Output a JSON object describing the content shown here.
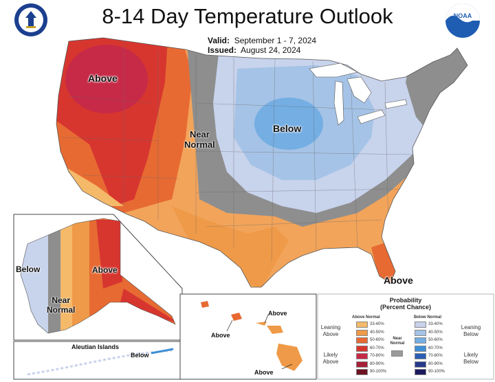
{
  "header": {
    "title": "8-14 Day Temperature Outlook",
    "valid_label": "Valid:",
    "valid_value": "September 1 - 7, 2024",
    "issued_label": "Issued:",
    "issued_value": "August 24, 2024"
  },
  "logos": {
    "left": "department-of-commerce-seal",
    "right": "noaa-logo"
  },
  "map_labels": {
    "above_nw": "Above",
    "near_normal_1": "Near",
    "near_normal_2": "Normal",
    "below_mw": "Below",
    "above_fl": "Above",
    "ak_below": "Below",
    "ak_above": "Above",
    "ak_near_1": "Near",
    "ak_near_2": "Normal",
    "aleutian_title": "Aleutian Islands",
    "aleutian_below": "Below",
    "hi_above_1": "Above",
    "hi_above_2": "Above",
    "hi_above_3": "Above"
  },
  "legend": {
    "title_1": "Probability",
    "title_2": "(Percent Chance)",
    "above_header": "Above Normal",
    "below_header": "Below Normal",
    "leaning_above": "Leaning Above",
    "likely_above": "Likely Above",
    "near_normal": "Near Normal",
    "leaning_below": "Leaning Below",
    "likely_below": "Likely Below",
    "above_bins": [
      {
        "label": "33-40%",
        "color": "#f5b96a"
      },
      {
        "label": "40-50%",
        "color": "#ef9a48"
      },
      {
        "label": "50-60%",
        "color": "#e76a33"
      },
      {
        "label": "60-70%",
        "color": "#d7362f"
      },
      {
        "label": "70-80%",
        "color": "#c72a47"
      },
      {
        "label": "80-90%",
        "color": "#a52036"
      },
      {
        "label": "90-100%",
        "color": "#6d1222"
      }
    ],
    "below_bins": [
      {
        "label": "33-40%",
        "color": "#c8d3ec"
      },
      {
        "label": "40-50%",
        "color": "#a5c3e6"
      },
      {
        "label": "50-60%",
        "color": "#74aee3"
      },
      {
        "label": "60-70%",
        "color": "#3f8fd6"
      },
      {
        "label": "70-80%",
        "color": "#2a5fb5"
      },
      {
        "label": "80-90%",
        "color": "#253a8c"
      },
      {
        "label": "90-100%",
        "color": "#1b1a5e"
      }
    ],
    "near_normal_color": "#9a9a9a"
  }
}
